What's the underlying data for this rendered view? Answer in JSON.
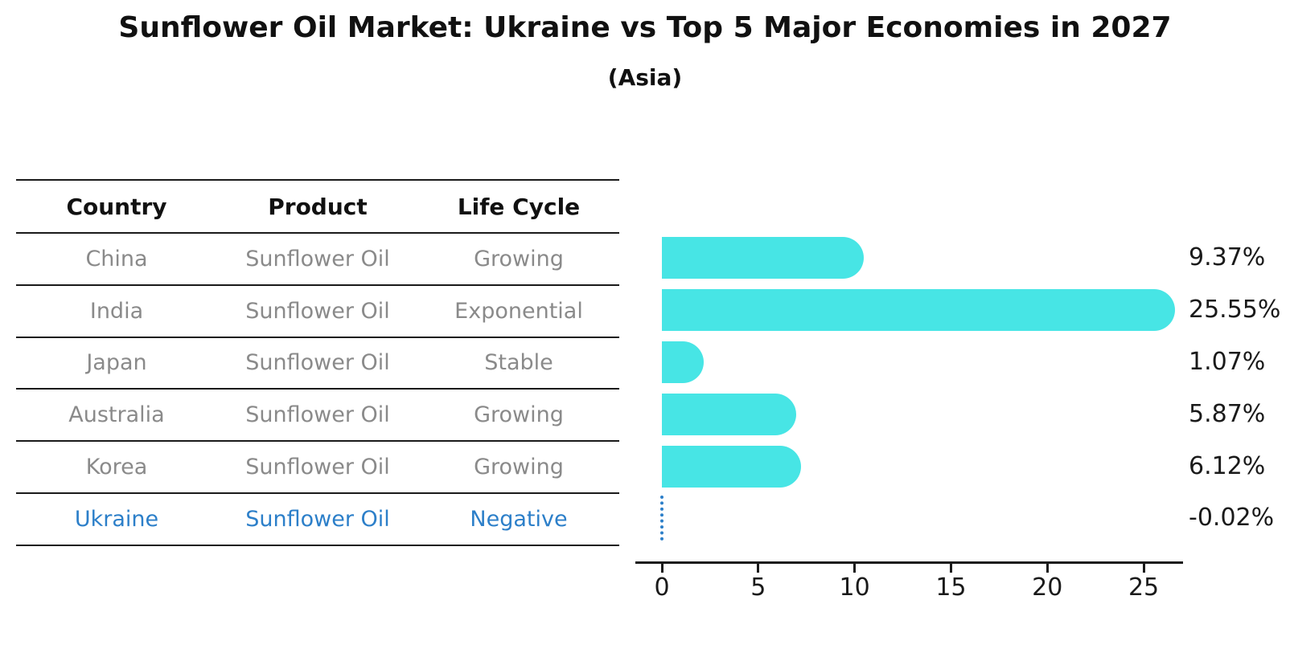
{
  "title": "Sunflower Oil Market: Ukraine vs Top 5 Major Economies in 2027",
  "subtitle": "(Asia)",
  "table": {
    "headers": [
      "Country",
      "Product",
      "Life Cycle"
    ],
    "rows": [
      {
        "country": "China",
        "product": "Sunflower Oil",
        "life_cycle": "Growing",
        "highlight": false
      },
      {
        "country": "India",
        "product": "Sunflower Oil",
        "life_cycle": "Exponential",
        "highlight": false
      },
      {
        "country": "Japan",
        "product": "Sunflower Oil",
        "life_cycle": "Stable",
        "highlight": false
      },
      {
        "country": "Australia",
        "product": "Sunflower Oil",
        "life_cycle": "Growing",
        "highlight": false
      },
      {
        "country": "Korea",
        "product": "Sunflower Oil",
        "life_cycle": "Growing",
        "highlight": false
      },
      {
        "country": "Ukraine",
        "product": "Sunflower Oil",
        "life_cycle": "Negative",
        "highlight": true
      }
    ]
  },
  "chart_data": {
    "type": "bar",
    "orientation": "horizontal",
    "categories": [
      "China",
      "India",
      "Japan",
      "Australia",
      "Korea",
      "Ukraine"
    ],
    "values": [
      9.37,
      25.55,
      1.07,
      5.87,
      6.12,
      -0.02
    ],
    "value_labels": [
      "9.37%",
      "25.55%",
      "1.07%",
      "5.87%",
      "6.12%",
      "-0.02%"
    ],
    "x_ticks": [
      0,
      5,
      10,
      15,
      20,
      25
    ],
    "xlim": [
      0,
      27
    ],
    "grid": false,
    "legend": false,
    "bar_color": "#47E5E5",
    "highlight_category": "Ukraine",
    "highlight_color": "#2c7fc9",
    "title": "Sunflower Oil Market: Ukraine vs Top 5 Major Economies in 2027",
    "subtitle": "(Asia)",
    "xlabel": "",
    "ylabel": ""
  }
}
